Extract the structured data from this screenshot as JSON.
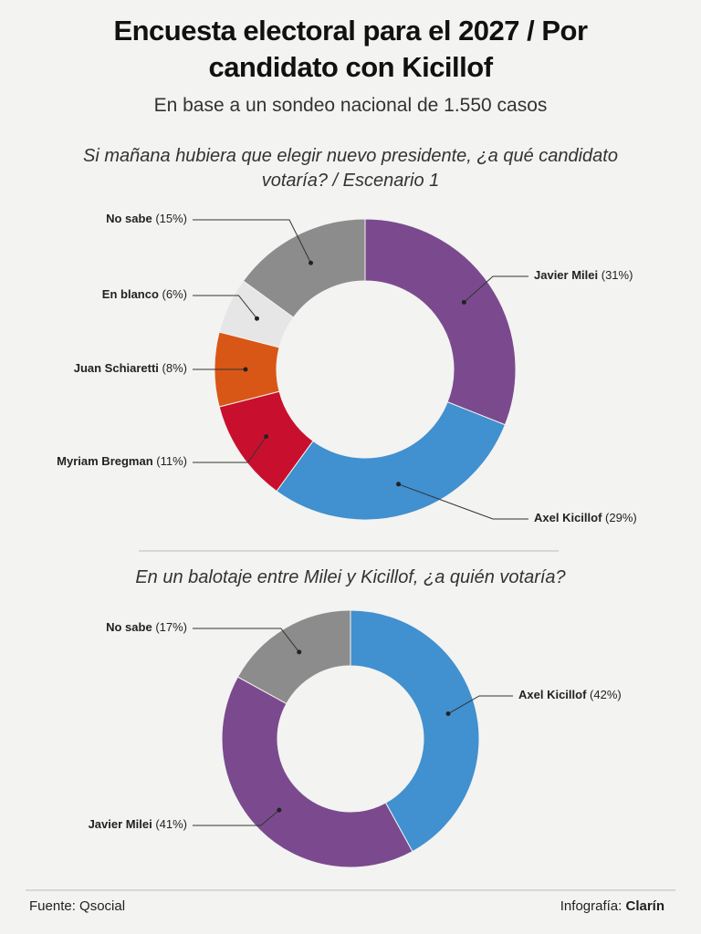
{
  "title": "Encuesta electoral para el 2027 / Por candidato con Kicillof",
  "subtitle": "En base a un sondeo nacional de 1.550 casos",
  "source": "Fuente: Qsocial",
  "credit_label": "Infografía:",
  "credit": "Clarín",
  "chart_data": [
    {
      "type": "pie",
      "title": "Si mañana hubiera que elegir nuevo presidente, ¿a qué candidato votaría? / Escenario 1",
      "categories": [
        "Javier Milei",
        "Axel Kicillof",
        "Myriam Bregman",
        "Juan Schiaretti",
        "En blanco",
        "No sabe"
      ],
      "values": [
        31,
        29,
        11,
        8,
        6,
        15
      ],
      "value_labels": [
        "(31%)",
        "(29%)",
        "(11%)",
        "(8%)",
        "(6%)",
        "(15%)"
      ],
      "colors": [
        "#7b4a8e",
        "#4190cf",
        "#c8102e",
        "#d95716",
        "#e6e6e6",
        "#8c8c8c"
      ]
    },
    {
      "type": "pie",
      "title": "En un balotaje entre Milei y Kicillof, ¿a quién votaría?",
      "categories": [
        "Axel Kicillof",
        "Javier Milei",
        "No sabe"
      ],
      "values": [
        42,
        41,
        17
      ],
      "value_labels": [
        "(42%)",
        "(41%)",
        "(17%)"
      ],
      "colors": [
        "#4190cf",
        "#7b4a8e",
        "#8c8c8c"
      ]
    }
  ]
}
